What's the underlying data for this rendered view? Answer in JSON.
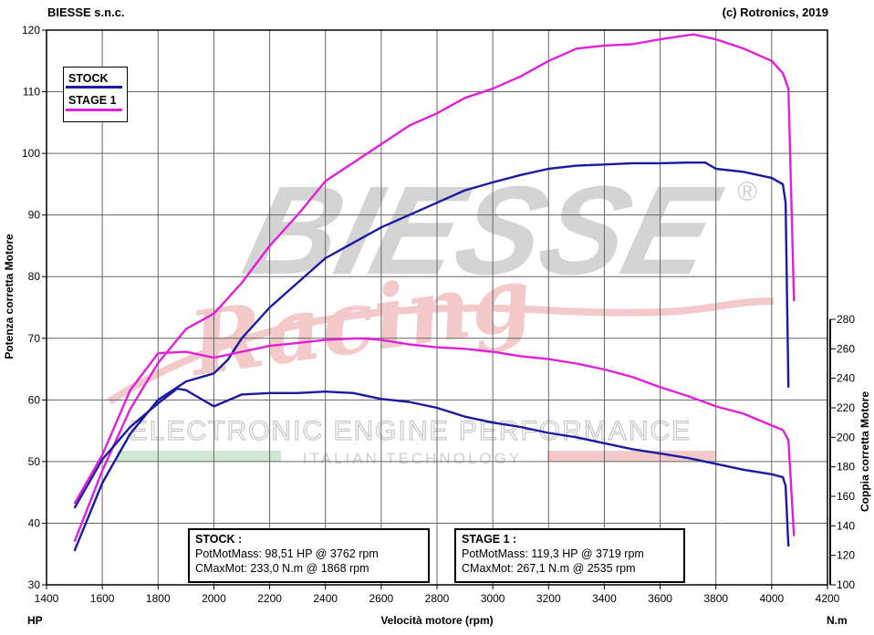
{
  "header": {
    "left": "BIESSE s.n.c.",
    "right": "(c) Rotronics, 2019"
  },
  "watermark": {
    "brand": "BIESSE",
    "registered": "®",
    "script": "Racing",
    "line1": "ELECTRONIC ENGINE PERFORMANCE",
    "line2": "ITALIAN TECHNOLOGY"
  },
  "colors": {
    "stock": "#1a1aa0",
    "stage1": "#e020d8",
    "grid": "#666666",
    "plot_bg": "#ffffff"
  },
  "chart_data": {
    "type": "line",
    "xlabel": "Velocità motore (rpm)",
    "x_unit_left": "HP",
    "x_unit_right": "N.m",
    "ylabel_left": "Potenza corretta Motore",
    "ylabel_right": "Coppia corretta Motore",
    "xlim": [
      1400,
      4200
    ],
    "ylim_left": [
      30,
      120
    ],
    "ylim_right": [
      100,
      280
    ],
    "x_ticks": [
      "1400",
      "1600",
      "1800",
      "2000",
      "2200",
      "2400",
      "2600",
      "2800",
      "3000",
      "3200",
      "3400",
      "3600",
      "3800",
      "4000",
      "4200"
    ],
    "y_left_ticks": [
      "30",
      "40",
      "50",
      "60",
      "70",
      "80",
      "90",
      "100",
      "110",
      "120"
    ],
    "y_right_ticks": [
      "100",
      "120",
      "140",
      "160",
      "180",
      "200",
      "220",
      "240",
      "260",
      "280"
    ],
    "grid": true,
    "legend": {
      "position": "top-left",
      "entries": [
        "STOCK",
        "STAGE 1"
      ]
    },
    "series": [
      {
        "name": "STOCK",
        "quantity": "power",
        "axis": "left",
        "x": [
          1500,
          1600,
          1700,
          1800,
          1900,
          2000,
          2050,
          2100,
          2200,
          2300,
          2400,
          2500,
          2600,
          2700,
          2800,
          2900,
          3000,
          3100,
          3200,
          3300,
          3400,
          3500,
          3600,
          3700,
          3762,
          3800,
          3900,
          4000,
          4040,
          4050,
          4060
        ],
        "y": [
          35.5,
          46.5,
          54.5,
          60,
          63,
          64.3,
          66.5,
          70,
          75,
          79,
          83,
          85.5,
          88,
          90,
          92,
          94,
          95.3,
          96.5,
          97.5,
          98,
          98.2,
          98.4,
          98.4,
          98.5,
          98.51,
          97.5,
          97,
          96,
          95,
          92,
          62
        ]
      },
      {
        "name": "STAGE 1",
        "quantity": "power",
        "axis": "left",
        "x": [
          1500,
          1600,
          1700,
          1800,
          1900,
          2000,
          2100,
          2200,
          2300,
          2400,
          2500,
          2600,
          2700,
          2800,
          2900,
          3000,
          3100,
          3200,
          3300,
          3400,
          3500,
          3600,
          3719,
          3800,
          3900,
          4000,
          4040,
          4060,
          4080
        ],
        "y": [
          37,
          48.5,
          58.5,
          66,
          71.5,
          74,
          79,
          85,
          90,
          95.5,
          98.5,
          101.5,
          104.5,
          106.5,
          109,
          110.5,
          112.5,
          115,
          117,
          117.5,
          117.7,
          118.5,
          119.3,
          118.5,
          117,
          115,
          113,
          110.5,
          76
        ]
      },
      {
        "name": "STOCK",
        "quantity": "torque",
        "axis": "right",
        "x": [
          1500,
          1600,
          1700,
          1800,
          1868,
          1900,
          2000,
          2100,
          2200,
          2300,
          2400,
          2500,
          2600,
          2700,
          2800,
          2900,
          3000,
          3100,
          3200,
          3300,
          3400,
          3500,
          3600,
          3700,
          3800,
          3900,
          4000,
          4040,
          4050,
          4060
        ],
        "y": [
          152,
          185,
          207,
          223,
          233,
          232,
          221,
          229,
          230,
          230,
          231,
          230,
          226,
          224,
          220,
          214,
          210,
          207,
          203,
          200,
          196,
          192,
          189,
          186,
          182,
          178,
          175,
          173,
          167,
          126
        ]
      },
      {
        "name": "STAGE 1",
        "quantity": "torque",
        "axis": "right",
        "x": [
          1500,
          1600,
          1700,
          1800,
          1900,
          2000,
          2100,
          2200,
          2300,
          2400,
          2500,
          2535,
          2600,
          2700,
          2800,
          2900,
          3000,
          3100,
          3200,
          3300,
          3400,
          3500,
          3600,
          3700,
          3800,
          3900,
          4000,
          4040,
          4060,
          4070,
          4080
        ],
        "y": [
          155,
          188,
          232,
          257,
          258,
          254,
          258,
          262,
          264,
          266,
          267,
          267.1,
          266,
          263,
          261,
          260,
          258,
          255,
          253,
          250,
          246,
          241,
          234,
          228,
          221,
          216,
          208,
          205,
          198,
          165,
          133
        ]
      }
    ]
  },
  "summary": {
    "stock": {
      "title": "STOCK :",
      "line1": "PotMotMass: 98,51 HP @ 3762 rpm",
      "line2": "CMaxMot: 233,0 N.m @ 1868 rpm"
    },
    "stage1": {
      "title": "STAGE 1 :",
      "line1": "PotMotMass: 119,3 HP @ 3719 rpm",
      "line2": "CMaxMot: 267,1 N.m @ 2535 rpm"
    }
  }
}
